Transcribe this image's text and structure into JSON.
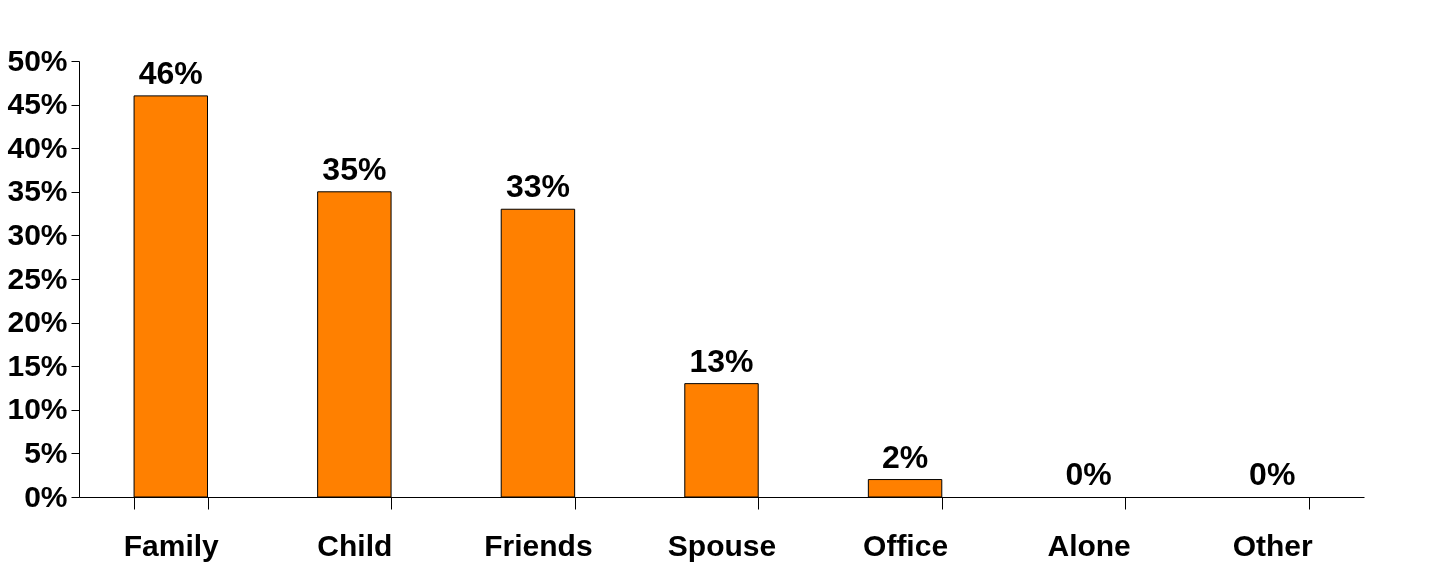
{
  "chart_data": {
    "type": "bar",
    "categories": [
      "Family",
      "Child",
      "Friends",
      "Spouse",
      "Office",
      "Alone",
      "Other"
    ],
    "values": [
      46,
      35,
      33,
      13,
      2,
      0,
      0
    ],
    "value_labels": [
      "46%",
      "35%",
      "33%",
      "13%",
      "2%",
      "0%",
      "0%"
    ],
    "color": "#ff8000",
    "ylim": [
      0,
      50
    ],
    "yticks": [
      {
        "value": 0,
        "label": "0%"
      },
      {
        "value": 5,
        "label": "5%"
      },
      {
        "value": 10,
        "label": "10%"
      },
      {
        "value": 15,
        "label": "15%"
      },
      {
        "value": 20,
        "label": "20%"
      },
      {
        "value": 25,
        "label": "25%"
      },
      {
        "value": 30,
        "label": "30%"
      },
      {
        "value": 35,
        "label": "35%"
      },
      {
        "value": 40,
        "label": "40%"
      },
      {
        "value": 45,
        "label": "45%"
      },
      {
        "value": 50,
        "label": "50%"
      }
    ]
  }
}
